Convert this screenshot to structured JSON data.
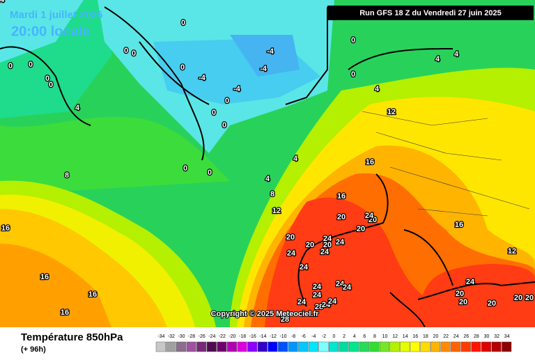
{
  "header": {
    "date": "Mardi 1 juillet 2025",
    "time": "20:00 locale",
    "run": "Run GFS 18 Z du Vendredi 27 juin 2025"
  },
  "copyright": "Copyright © 2025 Meteociel.fr",
  "footer": {
    "title": "Température 850hPa",
    "lead": "(+ 96h)"
  },
  "map_labels": [
    0,
    0,
    0,
    0,
    0,
    0,
    0,
    0,
    0,
    0,
    0,
    0,
    0,
    0,
    0,
    -4,
    -4,
    -4,
    -4,
    4,
    4,
    4,
    4,
    4,
    4,
    8,
    8,
    12,
    12,
    12,
    16,
    16,
    16,
    16,
    16,
    16,
    16,
    20,
    20,
    20,
    20,
    20,
    20,
    20,
    20,
    20,
    20,
    20,
    24,
    24,
    24,
    24,
    24,
    24,
    24,
    24,
    24,
    24,
    24,
    24,
    28,
    28,
    24,
    24,
    24
  ],
  "scale": {
    "ticks": [
      -34,
      -32,
      -30,
      -28,
      -26,
      -24,
      -22,
      -20,
      -18,
      -16,
      -14,
      -12,
      -10,
      -8,
      -6,
      -4,
      -2,
      0,
      2,
      4,
      6,
      8,
      10,
      12,
      14,
      16,
      18,
      20,
      22,
      24,
      26,
      28,
      30,
      32,
      34
    ],
    "colors": [
      "#c8c8c8",
      "#a0a0a0",
      "#8c6e8c",
      "#a050a0",
      "#782878",
      "#500a50",
      "#6e006e",
      "#b400b4",
      "#dc00dc",
      "#8c00ff",
      "#3200c8",
      "#0000ff",
      "#0050ff",
      "#0096ff",
      "#00c8ff",
      "#00e6ff",
      "#7dffff",
      "#00e6d2",
      "#00dca0",
      "#00e68c",
      "#28dc5a",
      "#32dc32",
      "#78e628",
      "#b4f000",
      "#e6ff00",
      "#ffff00",
      "#ffdc00",
      "#ffb400",
      "#ff8c00",
      "#ff6400",
      "#ff3c00",
      "#ff1400",
      "#dc0000",
      "#b40000",
      "#8c0000"
    ]
  }
}
